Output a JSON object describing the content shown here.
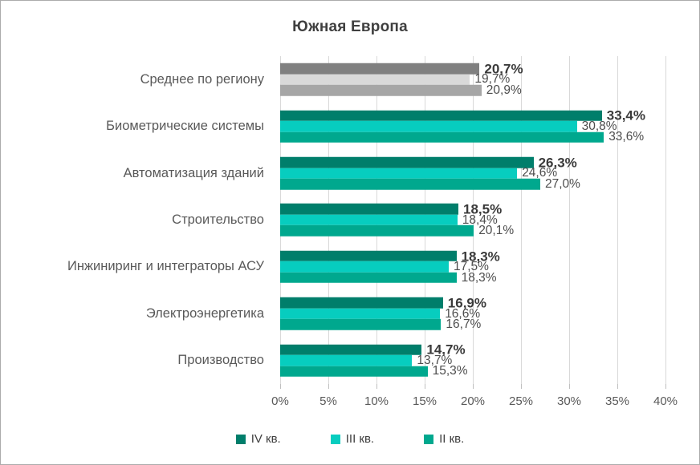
{
  "chart": {
    "title": "Южная Европа"
  },
  "chart_data": {
    "type": "bar",
    "orientation": "horizontal",
    "title": "Южная Европа",
    "xlabel": "",
    "ylabel": "",
    "xlim": [
      0,
      40
    ],
    "grid": true,
    "legend_position": "bottom",
    "value_format": "percent_comma_decimal",
    "categories": [
      "Среднее по региону",
      "Биометрические системы",
      "Автоматизация зданий",
      "Строительство",
      "Инжиниринг и интеграторы АСУ",
      "Электроэнергетика",
      "Производство"
    ],
    "average_category_index": 0,
    "series": [
      {
        "name": "IV кв.",
        "color": "#007e6b",
        "color_average": "#808080",
        "values": [
          20.7,
          33.4,
          26.3,
          18.5,
          18.3,
          16.9,
          14.7
        ],
        "labels": [
          "20,7%",
          "33,4%",
          "26,3%",
          "18,5%",
          "18,3%",
          "16,9%",
          "14,7%"
        ]
      },
      {
        "name": "III кв.",
        "color": "#07cdbf",
        "color_average": "#d9d9d9",
        "values": [
          19.7,
          30.8,
          24.6,
          18.4,
          17.5,
          16.6,
          13.7
        ],
        "labels": [
          "19,7%",
          "30,8%",
          "24,6%",
          "18,4%",
          "17,5%",
          "16,6%",
          "13,7%"
        ]
      },
      {
        "name": "II кв.",
        "color": "#00a88e",
        "color_average": "#a6a6a6",
        "values": [
          20.9,
          33.6,
          27.0,
          20.1,
          18.3,
          16.7,
          15.3
        ],
        "labels": [
          "20,9%",
          "33,6%",
          "27,0%",
          "20,1%",
          "18,3%",
          "16,7%",
          "15,3%"
        ]
      }
    ],
    "x_ticks": [
      "0%",
      "5%",
      "10%",
      "15%",
      "20%",
      "25%",
      "30%",
      "35%",
      "40%"
    ],
    "colors": {
      "gridline": "#d9d9d9",
      "tick_mark": "#bfbfbf",
      "title_text": "#3f3f3f",
      "category_text": "#595959",
      "axis_text": "#595959",
      "border": "#ababab"
    }
  }
}
